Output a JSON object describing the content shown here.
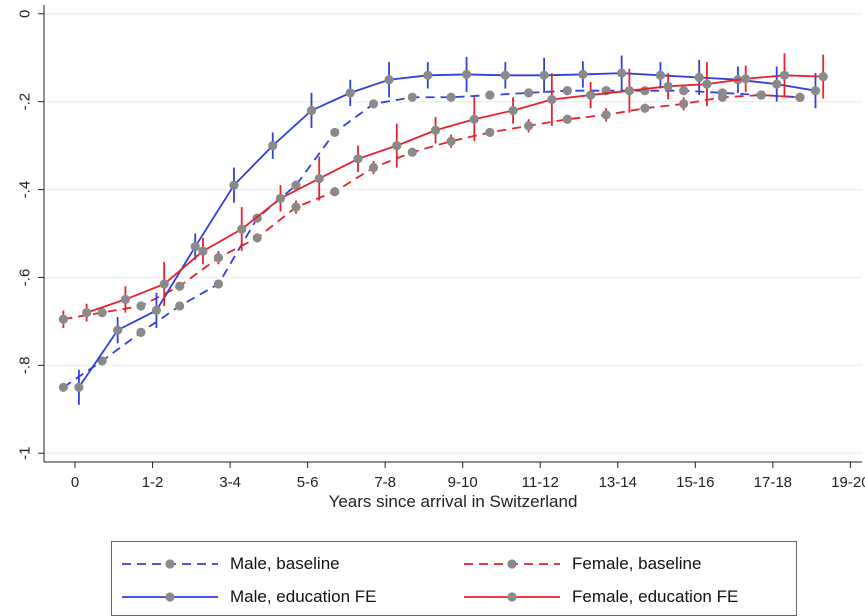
{
  "chart_data": {
    "type": "line",
    "xlabel": "Years since arrival in Switzerland",
    "ylabel": "",
    "x_tick_labels": [
      "0",
      "1-2",
      "3-4",
      "5-6",
      "7-8",
      "9-10",
      "11-12",
      "13-14",
      "15-16",
      "17-18",
      "19-20"
    ],
    "y_tick_labels": [
      "0",
      "-.2",
      "-.4",
      "-.6",
      "-.8",
      "-1"
    ],
    "y_ticks": [
      0,
      -0.2,
      -0.4,
      -0.6,
      -0.8,
      -1
    ],
    "ylim": [
      -1.02,
      0.02
    ],
    "xlim": [
      -0.8,
      20.3
    ],
    "grid": true,
    "legend_position": "bottom",
    "series": [
      {
        "name": "Male, baseline",
        "color": "#2f3fe0",
        "style": "dashed",
        "x": [
          -0.3,
          0.7,
          1.7,
          2.7,
          3.7,
          4.7,
          5.7,
          6.7,
          7.7,
          8.7,
          9.7,
          10.7,
          11.7,
          12.7,
          13.7,
          14.7,
          15.7,
          16.7,
          17.7,
          18.7
        ],
        "y": [
          -0.85,
          -0.79,
          -0.725,
          -0.665,
          -0.615,
          -0.465,
          -0.39,
          -0.27,
          -0.205,
          -0.19,
          -0.19,
          -0.185,
          -0.18,
          -0.175,
          -0.175,
          -0.175,
          -0.175,
          -0.18,
          -0.185,
          -0.19
        ],
        "error": [
          0.01,
          0.01,
          0.01,
          0.01,
          0.01,
          0.01,
          0.01,
          0.01,
          0.01,
          0.01,
          0.01,
          0.01,
          0.01,
          0.01,
          0.01,
          0.01,
          0.01,
          0.01,
          0.01,
          0.01
        ]
      },
      {
        "name": "Female, baseline",
        "color": "#e8202a",
        "style": "dashed",
        "x": [
          -0.3,
          0.7,
          1.7,
          2.7,
          3.7,
          4.7,
          5.7,
          6.7,
          7.7,
          8.7,
          9.7,
          10.7,
          11.7,
          12.7,
          13.7,
          14.7,
          15.7,
          16.7,
          17.7,
          18.7
        ],
        "y": [
          -0.695,
          -0.68,
          -0.665,
          -0.62,
          -0.555,
          -0.51,
          -0.44,
          -0.405,
          -0.35,
          -0.315,
          -0.29,
          -0.27,
          -0.255,
          -0.24,
          -0.23,
          -0.215,
          -0.205,
          -0.19,
          -0.185,
          -0.19
        ],
        "error": [
          0.02,
          0.01,
          0.01,
          0.01,
          0.015,
          0.01,
          0.015,
          0.01,
          0.015,
          0.01,
          0.015,
          0.01,
          0.015,
          0.01,
          0.015,
          0.01,
          0.015,
          0.01,
          0.01,
          0.01
        ]
      },
      {
        "name": "Male, education FE",
        "color": "#2f3fe0",
        "style": "solid",
        "x": [
          0.1,
          1.1,
          2.1,
          3.1,
          4.1,
          5.1,
          6.1,
          7.1,
          8.1,
          9.1,
          10.1,
          11.1,
          12.1,
          13.1,
          14.1,
          15.1,
          16.1,
          17.1,
          18.1,
          19.1
        ],
        "y": [
          -0.85,
          -0.72,
          -0.675,
          -0.53,
          -0.39,
          -0.3,
          -0.22,
          -0.18,
          -0.15,
          -0.14,
          -0.138,
          -0.14,
          -0.14,
          -0.138,
          -0.135,
          -0.14,
          -0.145,
          -0.15,
          -0.16,
          -0.175
        ],
        "error": [
          0.04,
          0.03,
          0.04,
          0.03,
          0.04,
          0.03,
          0.04,
          0.03,
          0.04,
          0.03,
          0.04,
          0.03,
          0.04,
          0.03,
          0.04,
          0.03,
          0.04,
          0.03,
          0.04,
          0.04
        ]
      },
      {
        "name": "Female, education FE",
        "color": "#e8202a",
        "style": "solid",
        "x": [
          0.3,
          1.3,
          2.3,
          3.3,
          4.3,
          5.3,
          6.3,
          7.3,
          8.3,
          9.3,
          10.3,
          11.3,
          12.3,
          13.3,
          14.3,
          15.3,
          16.3,
          17.3,
          18.3,
          19.3
        ],
        "y": [
          -0.68,
          -0.65,
          -0.615,
          -0.54,
          -0.49,
          -0.42,
          -0.375,
          -0.33,
          -0.3,
          -0.265,
          -0.24,
          -0.22,
          -0.195,
          -0.185,
          -0.175,
          -0.165,
          -0.16,
          -0.148,
          -0.14,
          -0.143
        ],
        "error": [
          0.02,
          0.03,
          0.05,
          0.03,
          0.05,
          0.03,
          0.05,
          0.03,
          0.05,
          0.03,
          0.05,
          0.03,
          0.06,
          0.03,
          0.05,
          0.03,
          0.05,
          0.03,
          0.05,
          0.05
        ]
      }
    ]
  },
  "legend": {
    "items": [
      {
        "label": "Male, baseline",
        "color": "#2f3fe0",
        "style": "dashed"
      },
      {
        "label": "Female, baseline",
        "color": "#e8202a",
        "style": "dashed"
      },
      {
        "label": "Male, education FE",
        "color": "#2f3fe0",
        "style": "solid"
      },
      {
        "label": "Female, education FE",
        "color": "#e8202a",
        "style": "solid"
      }
    ],
    "marker_color": "#8a8a8a"
  }
}
